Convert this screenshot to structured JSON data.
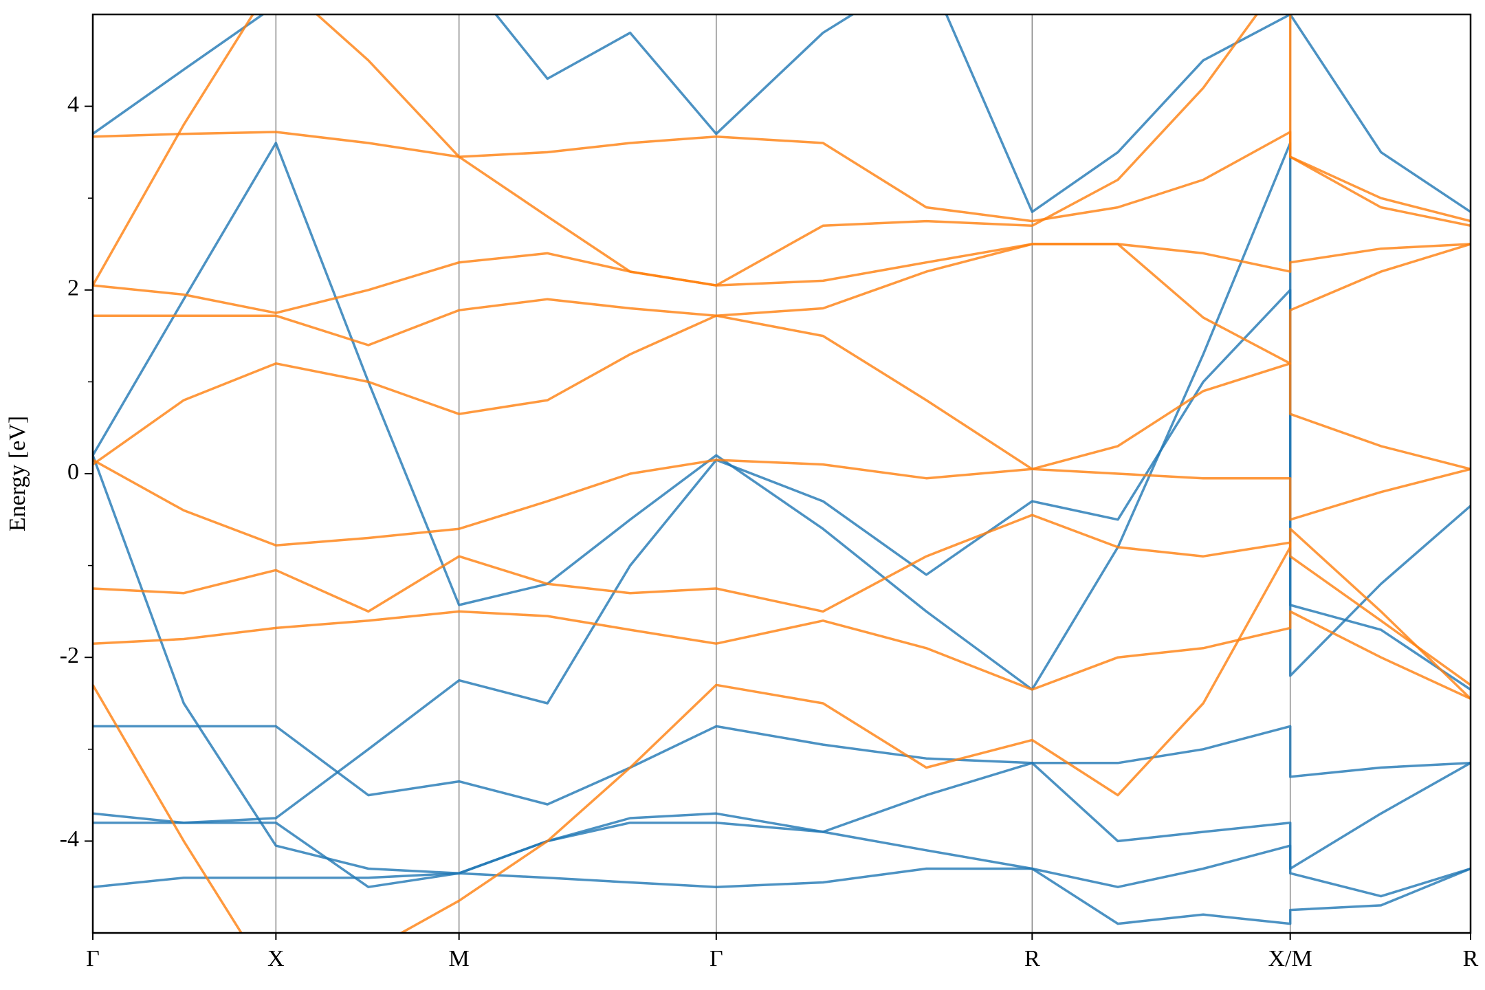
{
  "chart_data": {
    "type": "line",
    "y_label": "Energy [eV]",
    "x": [
      0,
      0.066,
      0.1329,
      0.2,
      0.2658,
      0.33,
      0.39,
      0.4525,
      0.53,
      0.605,
      0.6818,
      0.744,
      0.806,
      0.8691,
      0.8691,
      0.935,
      1.0
    ],
    "xlim": [
      0,
      1
    ],
    "xticks": [
      {
        "value": 0,
        "label": "Γ"
      },
      {
        "value": 0.1329,
        "label": "X"
      },
      {
        "value": 0.2658,
        "label": "M"
      },
      {
        "value": 0.4525,
        "label": "Γ"
      },
      {
        "value": 0.6818,
        "label": "R"
      },
      {
        "value": 0.8691,
        "label": "X/M"
      },
      {
        "value": 1.0,
        "label": "R"
      }
    ],
    "ylim": [
      -5,
      5
    ],
    "yticks": [
      -4,
      -2,
      0,
      2,
      4
    ],
    "yminorticks": [
      -3,
      -1,
      1,
      3
    ],
    "grid": true,
    "series": [
      {
        "color": "#1f77b4",
        "values": [
          0.2,
          1.9,
          3.6,
          1.0,
          -1.43,
          -1.2,
          -0.5,
          0.2,
          -0.6,
          -1.5,
          -2.35,
          -0.8,
          1.3,
          3.6,
          -1.43,
          -1.7,
          -2.35
        ]
      },
      {
        "color": "#1f77b4",
        "values": [
          0.2,
          -2.5,
          -4.05,
          -4.3,
          -4.35,
          -4.0,
          -3.8,
          -3.8,
          -3.9,
          -4.1,
          -4.3,
          -4.5,
          -4.3,
          -4.05,
          -4.35,
          -4.6,
          -4.3
        ]
      },
      {
        "color": "#1f77b4",
        "values": [
          -2.75,
          -2.75,
          -2.75,
          -3.5,
          -3.35,
          -3.6,
          -3.2,
          -2.75,
          -2.95,
          -3.1,
          -3.15,
          -3.15,
          -3.0,
          -2.75,
          -3.3,
          -3.2,
          -3.15
        ]
      },
      {
        "color": "#1f77b4",
        "values": [
          3.7,
          4.4,
          5.1,
          5.6,
          5.5,
          4.3,
          4.8,
          3.7,
          4.8,
          5.5,
          2.85,
          3.5,
          4.5,
          5.0,
          5.0,
          3.5,
          2.85
        ]
      },
      {
        "color": "#1f77b4",
        "values": [
          -3.7,
          -3.8,
          -3.75,
          -3.0,
          -2.25,
          -2.5,
          -1.0,
          0.15,
          -0.3,
          -1.1,
          -0.3,
          -0.5,
          1.0,
          2.0,
          -2.2,
          -1.2,
          -0.35
        ]
      },
      {
        "color": "#1f77b4",
        "values": [
          -4.5,
          -4.4,
          -4.4,
          -4.4,
          -4.35,
          -4.4,
          -4.45,
          -4.5,
          -4.45,
          -4.3,
          -4.3,
          -4.9,
          -4.8,
          -4.9,
          -4.75,
          -4.7,
          -4.3
        ]
      },
      {
        "color": "#1f77b4",
        "values": [
          -3.8,
          -3.8,
          -3.8,
          -4.5,
          -4.35,
          -4.0,
          -3.75,
          -3.7,
          -3.9,
          -3.5,
          -3.15,
          -4.0,
          -3.9,
          -3.8,
          -4.3,
          -3.7,
          -3.15
        ]
      },
      {
        "color": "#ff7f0e",
        "values": [
          3.67,
          3.7,
          3.72,
          3.6,
          3.45,
          3.5,
          3.6,
          3.67,
          3.6,
          2.9,
          2.75,
          2.9,
          3.2,
          3.72,
          3.45,
          3.0,
          2.75
        ]
      },
      {
        "color": "#ff7f0e",
        "values": [
          2.05,
          1.95,
          1.75,
          2.0,
          2.3,
          2.4,
          2.2,
          2.05,
          2.1,
          2.3,
          2.5,
          2.5,
          2.4,
          2.2,
          2.3,
          2.45,
          2.5
        ]
      },
      {
        "color": "#ff7f0e",
        "values": [
          1.72,
          1.72,
          1.72,
          1.4,
          1.78,
          1.9,
          1.8,
          1.72,
          1.8,
          2.2,
          2.5,
          2.5,
          1.7,
          1.2,
          1.78,
          2.2,
          2.5
        ]
      },
      {
        "color": "#ff7f0e",
        "values": [
          0.15,
          -0.4,
          -0.78,
          -0.7,
          -0.6,
          -0.3,
          0.0,
          0.15,
          0.1,
          -0.05,
          0.05,
          0.0,
          -0.05,
          -0.05,
          -0.5,
          -0.2,
          0.05
        ]
      },
      {
        "color": "#ff7f0e",
        "values": [
          0.1,
          0.8,
          1.2,
          1.0,
          0.65,
          0.8,
          1.3,
          1.72,
          1.5,
          0.8,
          0.05,
          0.3,
          0.9,
          1.2,
          0.65,
          0.3,
          0.05
        ]
      },
      {
        "color": "#ff7f0e",
        "values": [
          -1.85,
          -1.8,
          -1.68,
          -1.6,
          -1.5,
          -1.55,
          -1.7,
          -1.85,
          -1.6,
          -1.9,
          -2.35,
          -2.0,
          -1.9,
          -1.68,
          -1.5,
          -2.0,
          -2.45
        ]
      },
      {
        "color": "#ff7f0e",
        "values": [
          -2.3,
          -4.0,
          -5.6,
          -5.2,
          -4.65,
          -4.0,
          -3.2,
          -2.3,
          -2.5,
          -3.2,
          -2.9,
          -3.5,
          -2.5,
          -0.8,
          -0.6,
          -1.5,
          -2.45
        ]
      },
      {
        "color": "#ff7f0e",
        "values": [
          2.05,
          3.8,
          5.4,
          4.5,
          3.45,
          2.8,
          2.2,
          2.05,
          2.7,
          2.75,
          2.7,
          3.2,
          4.2,
          5.5,
          3.45,
          2.9,
          2.7
        ]
      },
      {
        "color": "#ff7f0e",
        "values": [
          -1.25,
          -1.3,
          -1.05,
          -1.5,
          -0.9,
          -1.2,
          -1.3,
          -1.25,
          -1.5,
          -0.9,
          -0.45,
          -0.8,
          -0.9,
          -0.75,
          -0.9,
          -1.6,
          -2.3
        ]
      }
    ]
  }
}
